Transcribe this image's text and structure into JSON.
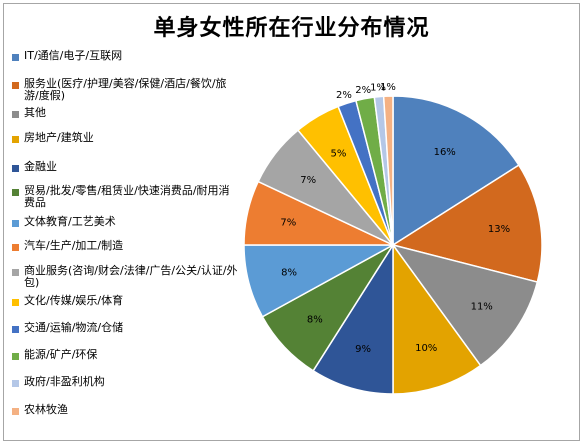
{
  "chart_data": {
    "type": "pie",
    "title": "单身女性所在行业分布情况",
    "legend_position": "left",
    "slices": [
      {
        "label": "IT/通信/电子/互联网",
        "value": 16,
        "value_label": "16%",
        "color": "#4f81bd"
      },
      {
        "label": "服务业(医疗/护理/美容/保健/酒店/餐饮/旅游/度假)",
        "value": 13,
        "value_label": "13%",
        "color": "#d2691e"
      },
      {
        "label": "其他",
        "value": 11,
        "value_label": "11%",
        "color": "#8c8c8c"
      },
      {
        "label": "房地产/建筑业",
        "value": 10,
        "value_label": "10%",
        "color": "#e3a300"
      },
      {
        "label": "金融业",
        "value": 9,
        "value_label": "9%",
        "color": "#2f5597"
      },
      {
        "label": "贸易/批发/零售/租赁业/快速消费品/耐用消费品",
        "value": 8,
        "value_label": "8%",
        "color": "#548235"
      },
      {
        "label": "文体教育/工艺美术",
        "value": 8,
        "value_label": "8%",
        "color": "#5b9bd5"
      },
      {
        "label": "汽车/生产/加工/制造",
        "value": 7,
        "value_label": "7%",
        "color": "#ed7d31"
      },
      {
        "label": "商业服务(咨询/财会/法律/广告/公关/认证/外包)",
        "value": 7,
        "value_label": "7%",
        "color": "#a5a5a5"
      },
      {
        "label": "文化/传媒/娱乐/体育",
        "value": 5,
        "value_label": "5%",
        "color": "#ffc000"
      },
      {
        "label": "交通/运输/物流/仓储",
        "value": 2,
        "value_label": "2%",
        "color": "#4472c4"
      },
      {
        "label": "能源/矿产/环保",
        "value": 2,
        "value_label": "2%",
        "color": "#70ad47"
      },
      {
        "label": "政府/非盈利机构",
        "value": 1,
        "value_label": "1%",
        "color": "#b4c7e7"
      },
      {
        "label": "农林牧渔",
        "value": 1,
        "value_label": "1%",
        "color": "#f4b183"
      }
    ]
  }
}
